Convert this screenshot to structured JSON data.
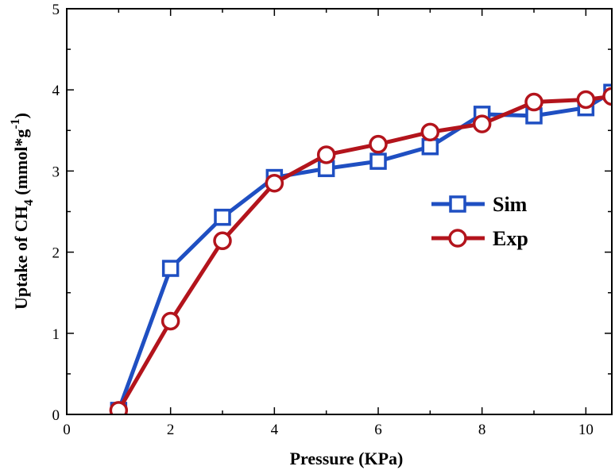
{
  "chart_data": {
    "type": "line",
    "xlabel": "Pressure (KPa)",
    "ylabel": {
      "prefix": "Uptake of CH",
      "subscript": "4",
      "middle": " (mmol*g",
      "superscript": "-1",
      "suffix": ")"
    },
    "xlim": [
      0,
      10.5
    ],
    "ylim": [
      0,
      5
    ],
    "xticks": [
      "0",
      "2",
      "4",
      "6",
      "8",
      "10"
    ],
    "yticks": [
      "0",
      "1",
      "2",
      "3",
      "4",
      "5"
    ],
    "legend_position": "right-middle",
    "series": [
      {
        "name": "Sim",
        "color": "#1f4fc2",
        "marker": "square",
        "x": [
          1,
          2,
          3,
          4,
          5,
          6,
          7,
          8,
          9,
          10,
          10.5
        ],
        "y": [
          0.05,
          1.8,
          2.43,
          2.92,
          3.03,
          3.12,
          3.3,
          3.7,
          3.68,
          3.78,
          3.97
        ]
      },
      {
        "name": "Exp",
        "color": "#b3141c",
        "marker": "circle",
        "x": [
          1,
          2,
          3,
          4,
          5,
          6,
          7,
          8,
          9,
          10,
          10.5
        ],
        "y": [
          0.05,
          1.15,
          2.14,
          2.85,
          3.2,
          3.33,
          3.48,
          3.58,
          3.85,
          3.88,
          3.92
        ]
      }
    ]
  }
}
